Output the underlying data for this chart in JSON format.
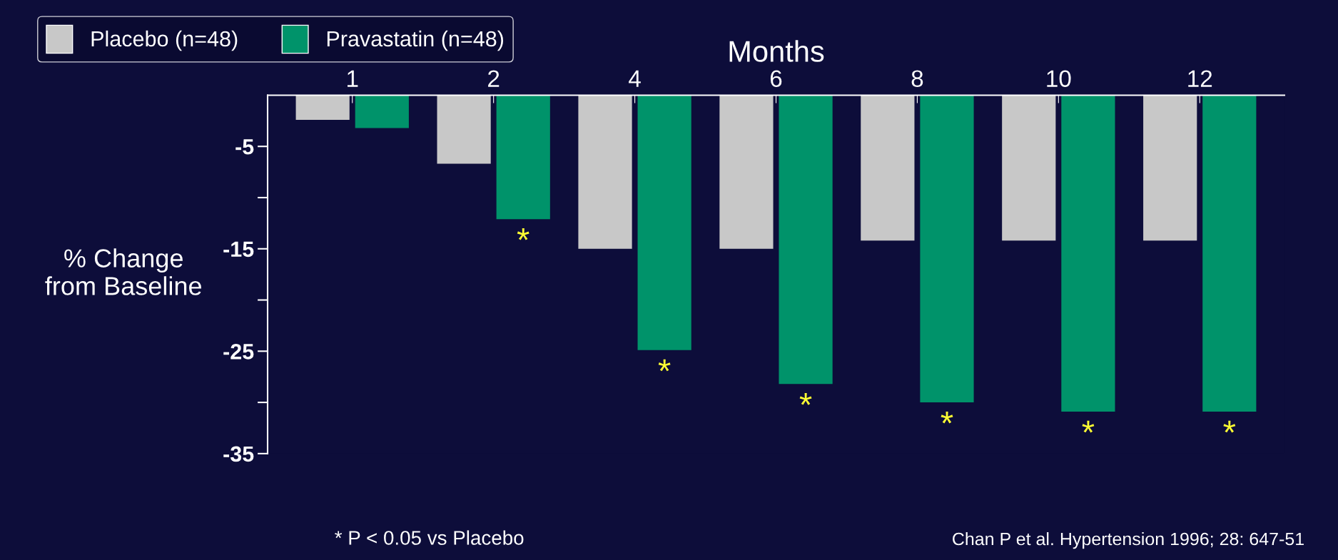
{
  "chart_data": {
    "type": "bar",
    "xlabel": "Months",
    "ylabel": "% Change\nfrom Baseline",
    "categories": [
      "1",
      "2",
      "4",
      "6",
      "8",
      "10",
      "12"
    ],
    "series": [
      {
        "name": "Placebo (n=48)",
        "color": "#c8c8c8",
        "values": [
          -2.4,
          -6.7,
          -15,
          -15,
          -14.2,
          -14.2,
          -14.2
        ]
      },
      {
        "name": "Pravastatin (n=48)",
        "color": "#00936a",
        "values": [
          -3.2,
          -12.1,
          -24.9,
          -28.2,
          -30,
          -30.9,
          -30.9
        ]
      }
    ],
    "ylim": [
      -35,
      0
    ],
    "yticks": [
      {
        "value": -35,
        "label": "-35"
      },
      {
        "value": -30,
        "label": null
      },
      {
        "value": -25,
        "label": "-25"
      },
      {
        "value": -20,
        "label": null
      },
      {
        "value": -15,
        "label": "-15"
      },
      {
        "value": -10,
        "label": null
      },
      {
        "value": -5,
        "label": "-5"
      }
    ],
    "annotations": [
      {
        "text": "*",
        "x": "2",
        "y": -12.1
      },
      {
        "text": "*",
        "x": "4",
        "y": -24.9
      },
      {
        "text": "*",
        "x": "6",
        "y": -28.2
      },
      {
        "text": "*",
        "x": "8",
        "y": -30
      },
      {
        "text": "*",
        "x": "10",
        "y": -30.9
      },
      {
        "text": "*",
        "x": "12",
        "y": -30.9
      },
      "* P < 0.05 vs Placebo",
      "Chan P et al. Hypertension 1996; 28: 647-51"
    ],
    "legend": "top left",
    "grid": false
  }
}
